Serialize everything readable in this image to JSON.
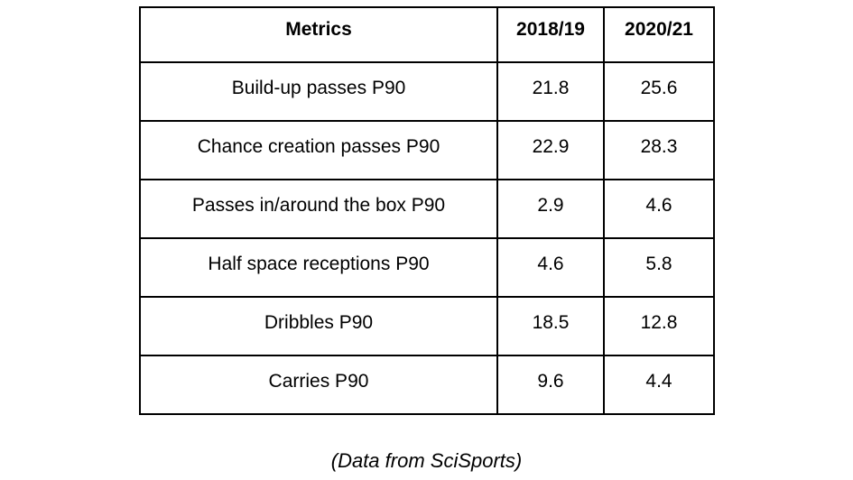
{
  "colors": {
    "background": "#ffffff",
    "border": "#000000",
    "text": "#000000"
  },
  "table": {
    "columns": [
      "Metrics",
      "2018/19",
      "2020/21"
    ],
    "rows": [
      [
        "Build-up passes P90",
        "21.8",
        "25.6"
      ],
      [
        "Chance creation passes P90",
        "22.9",
        "28.3"
      ],
      [
        "Passes in/around the box P90",
        "2.9",
        "4.6"
      ],
      [
        "Half space receptions P90",
        "4.6",
        "5.8"
      ],
      [
        "Dribbles P90",
        "18.5",
        "12.8"
      ],
      [
        "Carries P90",
        "9.6",
        "4.4"
      ]
    ]
  },
  "caption": {
    "text": "(Data from SciSports)"
  },
  "chart_data": {
    "type": "table",
    "title": "",
    "columns": [
      "Metrics",
      "2018/19",
      "2020/21"
    ],
    "categories": [
      "Build-up passes P90",
      "Chance creation passes P90",
      "Passes in/around the box P90",
      "Half space receptions P90",
      "Dribbles P90",
      "Carries P90"
    ],
    "series": [
      {
        "name": "2018/19",
        "values": [
          21.8,
          22.9,
          2.9,
          4.6,
          18.5,
          9.6
        ]
      },
      {
        "name": "2020/21",
        "values": [
          25.6,
          28.3,
          4.6,
          5.8,
          12.8,
          4.4
        ]
      }
    ],
    "caption": "(Data from SciSports)"
  }
}
